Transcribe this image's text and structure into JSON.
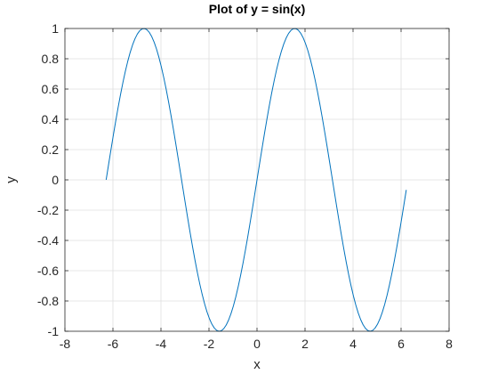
{
  "chart_data": {
    "type": "line",
    "title": "Plot of y = sin(x)",
    "xlabel": "x",
    "ylabel": "y",
    "xlim": [
      -8,
      8
    ],
    "ylim": [
      -1,
      1
    ],
    "xticks": [
      -8,
      -6,
      -4,
      -2,
      0,
      2,
      4,
      6,
      8
    ],
    "xtick_labels": [
      "-8",
      "-6",
      "-4",
      "-2",
      "0",
      "2",
      "4",
      "6",
      "8"
    ],
    "yticks": [
      -1,
      -0.8,
      -0.6,
      -0.4,
      -0.2,
      0,
      0.2,
      0.4,
      0.6,
      0.8,
      1
    ],
    "ytick_labels": [
      "-1",
      "-0.8",
      "-0.6",
      "-0.4",
      "-0.2",
      "0",
      "0.2",
      "0.4",
      "0.6",
      "0.8",
      "1"
    ],
    "grid": true,
    "box": true,
    "series": [
      {
        "function": "sin(x)",
        "x_range": [
          -6.283,
          6.217
        ],
        "x_step": 0.1,
        "color": "#0072BD"
      }
    ]
  }
}
